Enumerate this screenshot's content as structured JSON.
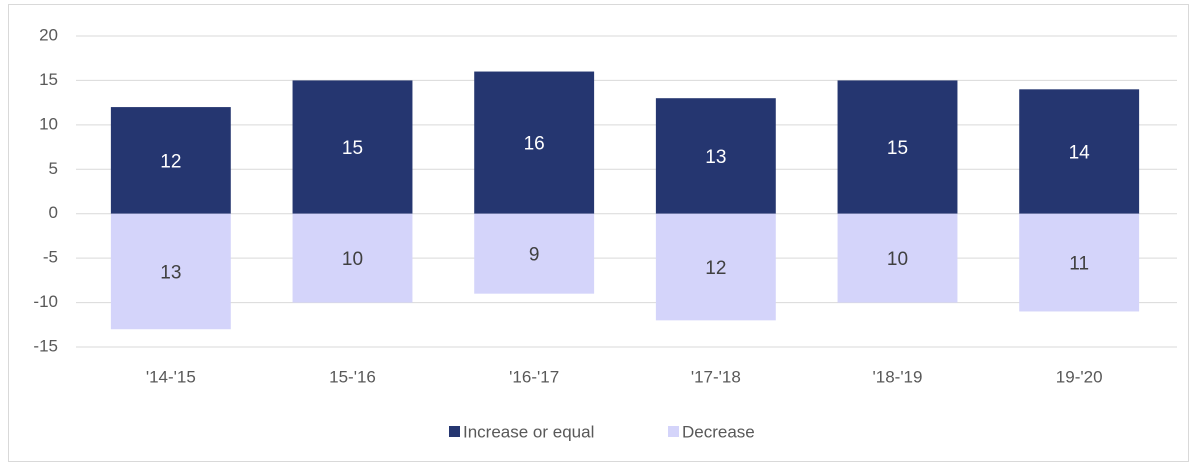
{
  "chart_data": {
    "type": "bar",
    "categories": [
      "'14-'15",
      "15-'16",
      "'16-'17",
      "'17-'18",
      "'18-'19",
      "19-'20"
    ],
    "series": [
      {
        "name": "Increase or equal",
        "color": "#253670",
        "values": [
          12,
          15,
          16,
          13,
          15,
          14
        ]
      },
      {
        "name": "Decrease",
        "color": "#d4d4fa",
        "values": [
          -13,
          -10,
          -9,
          -12,
          -10,
          -11
        ],
        "value_labels": [
          "13",
          "10",
          "9",
          "12",
          "10",
          "11"
        ]
      }
    ],
    "ylim": [
      -15,
      20
    ],
    "yticks": [
      -15,
      -10,
      -5,
      0,
      5,
      10,
      15,
      20
    ],
    "grid": true,
    "legend": "bottom"
  }
}
